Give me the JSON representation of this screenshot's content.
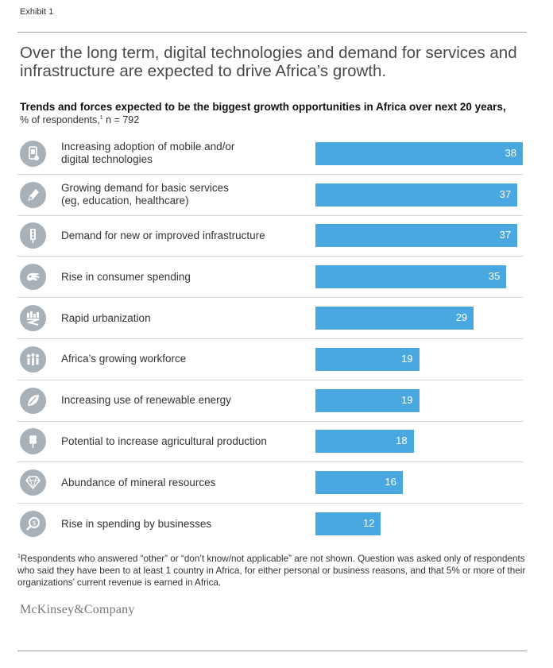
{
  "exhibit_label": "Exhibit 1",
  "headline": "Over the long term, digital technologies and demand for services and infrastructure are expected to drive Africa’s growth.",
  "subtitle": "Trends and forces expected to be the biggest growth opportunities in Africa over next 20 years,",
  "subnote": {
    "prefix": "% of respondents,",
    "footnote_mark": "1",
    "suffix": " n = 792"
  },
  "footnote": {
    "mark": "1",
    "text": "Respondents who answered “other” or “don’t know/not applicable” are not shown. Question was asked only of respondents who said they have been to at least 1 country in Africa, for either personal or business reasons, and that 5% or more of their organizations’ current revenue is earned in Africa."
  },
  "logo": "McKinsey&Company",
  "colors": {
    "bar": "#4aa8e0",
    "icon_bg": "#a8b1b8"
  },
  "chart_data": {
    "type": "bar",
    "orientation": "horizontal",
    "categories": [
      "Increasing adoption of mobile and/or digital technologies",
      "Growing demand for basic services (eg, education, healthcare)",
      "Demand for new or improved infrastructure",
      "Rise in consumer spending",
      "Rapid urbanization",
      "Africa’s growing workforce",
      "Increasing use of renewable energy",
      "Potential to increase agricultural production",
      "Abundance of mineral resources",
      "Rise in spending by businesses"
    ],
    "label_lines": [
      [
        "Increasing adoption of mobile and/or",
        "digital technologies"
      ],
      [
        "Growing demand for basic services",
        "(eg, education, healthcare)"
      ],
      [
        "Demand for new or improved infrastructure"
      ],
      [
        "Rise in consumer spending"
      ],
      [
        "Rapid urbanization"
      ],
      [
        "Africa’s growing workforce"
      ],
      [
        "Increasing use of renewable energy"
      ],
      [
        "Potential to increase agricultural production"
      ],
      [
        "Abundance of mineral resources"
      ],
      [
        "Rise in spending by businesses"
      ]
    ],
    "icons": [
      "mobile-icon",
      "pencil-icon",
      "traffic-light-icon",
      "hand-icon",
      "city-road-icon",
      "people-icon",
      "leaf-energy-icon",
      "wheat-icon",
      "diamond-icon",
      "coin-magnifier-icon"
    ],
    "values": [
      38,
      37,
      37,
      35,
      29,
      19,
      19,
      18,
      16,
      12
    ],
    "title": "Trends and forces expected to be the biggest growth opportunities in Africa over next 20 years,",
    "xlabel": "% of respondents",
    "grid": false,
    "legend": "none"
  }
}
